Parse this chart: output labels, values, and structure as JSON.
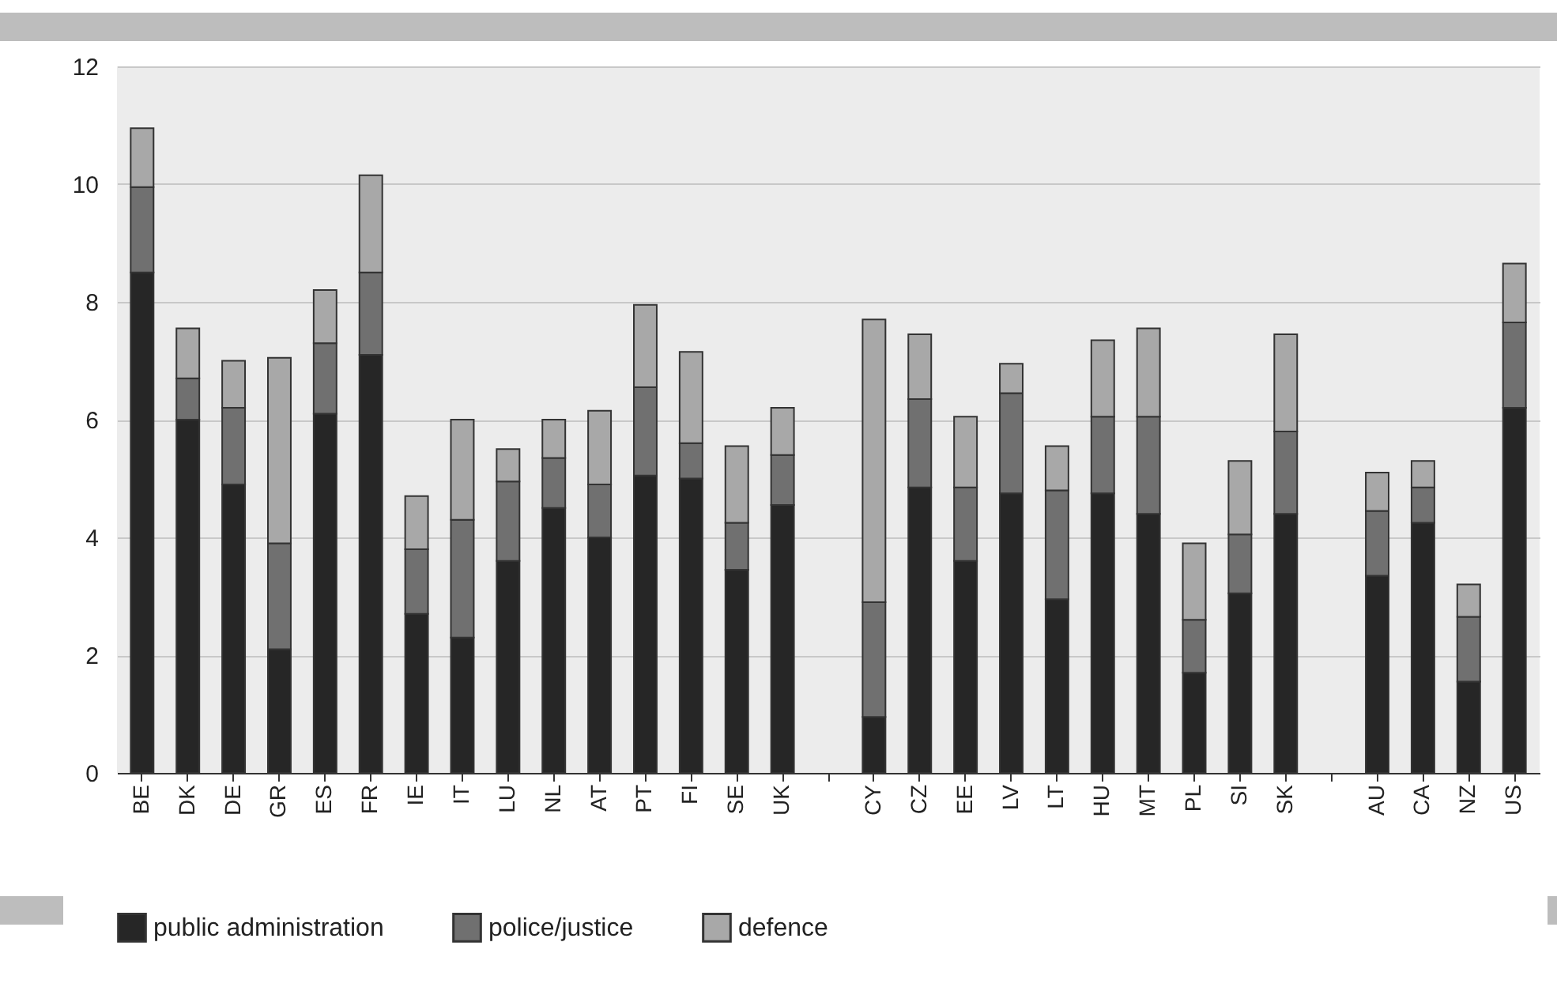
{
  "chart_data": {
    "type": "bar",
    "stacked": true,
    "categories": [
      "BE",
      "DK",
      "DE",
      "GR",
      "ES",
      "FR",
      "IE",
      "IT",
      "LU",
      "NL",
      "AT",
      "PT",
      "FI",
      "SE",
      "UK",
      null,
      "CY",
      "CZ",
      "EE",
      "LV",
      "LT",
      "HU",
      "MT",
      "PL",
      "SI",
      "SK",
      null,
      "AU",
      "CA",
      "NZ",
      "US"
    ],
    "series": [
      {
        "name": "public administration",
        "color": "#262626",
        "values": [
          8.5,
          6.0,
          4.9,
          2.1,
          6.1,
          7.1,
          2.7,
          2.3,
          3.6,
          4.5,
          4.0,
          5.05,
          5.0,
          3.45,
          4.55,
          null,
          0.95,
          4.85,
          3.6,
          4.75,
          2.95,
          4.75,
          4.4,
          1.7,
          3.05,
          4.4,
          null,
          3.35,
          4.25,
          1.55,
          6.2
        ]
      },
      {
        "name": "police/justice",
        "color": "#707070",
        "values": [
          1.45,
          0.7,
          1.3,
          1.8,
          1.2,
          1.4,
          1.1,
          2.0,
          1.35,
          0.85,
          0.9,
          1.5,
          0.6,
          0.8,
          0.85,
          null,
          1.95,
          1.5,
          1.25,
          1.7,
          1.85,
          1.3,
          1.65,
          0.9,
          1.0,
          1.4,
          null,
          1.1,
          0.6,
          1.1,
          1.45
        ]
      },
      {
        "name": "defence",
        "color": "#a8a8a8",
        "values": [
          1.0,
          0.85,
          0.8,
          3.15,
          0.9,
          1.65,
          0.9,
          1.7,
          0.55,
          0.65,
          1.25,
          1.4,
          1.55,
          1.3,
          0.8,
          null,
          4.8,
          1.1,
          1.2,
          0.5,
          0.75,
          1.3,
          1.5,
          1.3,
          1.25,
          1.65,
          null,
          0.65,
          0.45,
          0.55,
          1.0
        ]
      }
    ],
    "ylim": [
      0,
      12
    ],
    "yticks": [
      0,
      2,
      4,
      6,
      8,
      10,
      12
    ],
    "grid": "y",
    "legend": "bottom"
  }
}
